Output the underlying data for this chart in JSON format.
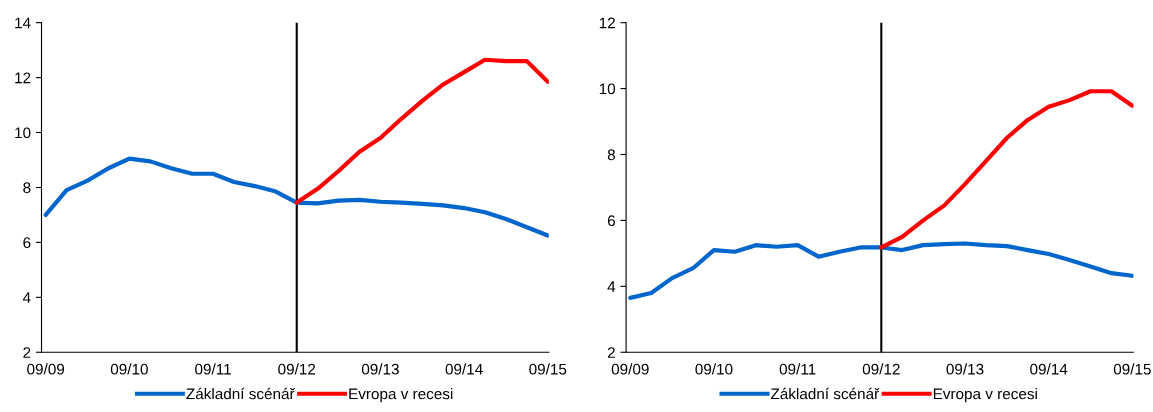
{
  "chart_data": [
    {
      "type": "line",
      "categories": [
        "09/09",
        null,
        null,
        null,
        "09/10",
        null,
        null,
        null,
        "09/11",
        null,
        null,
        null,
        "09/12",
        null,
        null,
        null,
        "09/13",
        null,
        null,
        null,
        "09/14",
        null,
        null,
        null,
        "09/15"
      ],
      "series": [
        {
          "name": "Základní scénář",
          "color": "#0066cc",
          "values": [
            7.0,
            7.9,
            8.25,
            8.7,
            9.05,
            8.95,
            8.7,
            8.5,
            8.5,
            8.2,
            8.05,
            7.85,
            7.45,
            7.42,
            7.52,
            7.55,
            7.48,
            7.45,
            7.4,
            7.35,
            7.25,
            7.1,
            6.85,
            6.55,
            6.25
          ]
        },
        {
          "name": "Evropa v recesi",
          "color": "#ff0000",
          "values": [
            null,
            null,
            null,
            null,
            null,
            null,
            null,
            null,
            null,
            null,
            null,
            null,
            7.45,
            7.95,
            8.6,
            9.3,
            9.8,
            10.5,
            11.15,
            11.75,
            12.2,
            12.65,
            12.6,
            12.6,
            11.85
          ]
        }
      ],
      "ylim": [
        2,
        14
      ],
      "yticks": [
        2,
        4,
        6,
        8,
        10,
        12,
        14
      ],
      "grid": false,
      "legend": "bottom",
      "marker": "none",
      "line_style": "solid",
      "ref_lines": [
        {
          "axis": "x",
          "value": "09/12",
          "color": "#000000"
        }
      ]
    },
    {
      "type": "line",
      "categories": [
        "09/09",
        null,
        null,
        null,
        "09/10",
        null,
        null,
        null,
        "09/11",
        null,
        null,
        null,
        "09/12",
        null,
        null,
        null,
        "09/13",
        null,
        null,
        null,
        "09/14",
        null,
        null,
        null,
        "09/15"
      ],
      "series": [
        {
          "name": "Základní scénář",
          "color": "#0066cc",
          "values": [
            3.65,
            3.8,
            4.25,
            4.55,
            5.1,
            5.05,
            5.25,
            5.2,
            5.25,
            4.9,
            5.05,
            5.18,
            5.18,
            5.1,
            5.25,
            5.28,
            5.3,
            5.25,
            5.22,
            5.1,
            4.98,
            4.8,
            4.6,
            4.4,
            4.32
          ]
        },
        {
          "name": "Evropa v recesi",
          "color": "#ff0000",
          "values": [
            null,
            null,
            null,
            null,
            null,
            null,
            null,
            null,
            null,
            null,
            null,
            null,
            5.18,
            5.5,
            6.0,
            6.45,
            7.1,
            7.8,
            8.5,
            9.05,
            9.45,
            9.65,
            9.92,
            9.92,
            9.48
          ]
        }
      ],
      "ylim": [
        2,
        12
      ],
      "yticks": [
        2,
        4,
        6,
        8,
        10,
        12
      ],
      "grid": false,
      "legend": "bottom",
      "marker": "none",
      "line_style": "solid",
      "ref_lines": [
        {
          "axis": "x",
          "value": "09/12",
          "color": "#000000"
        }
      ]
    }
  ]
}
